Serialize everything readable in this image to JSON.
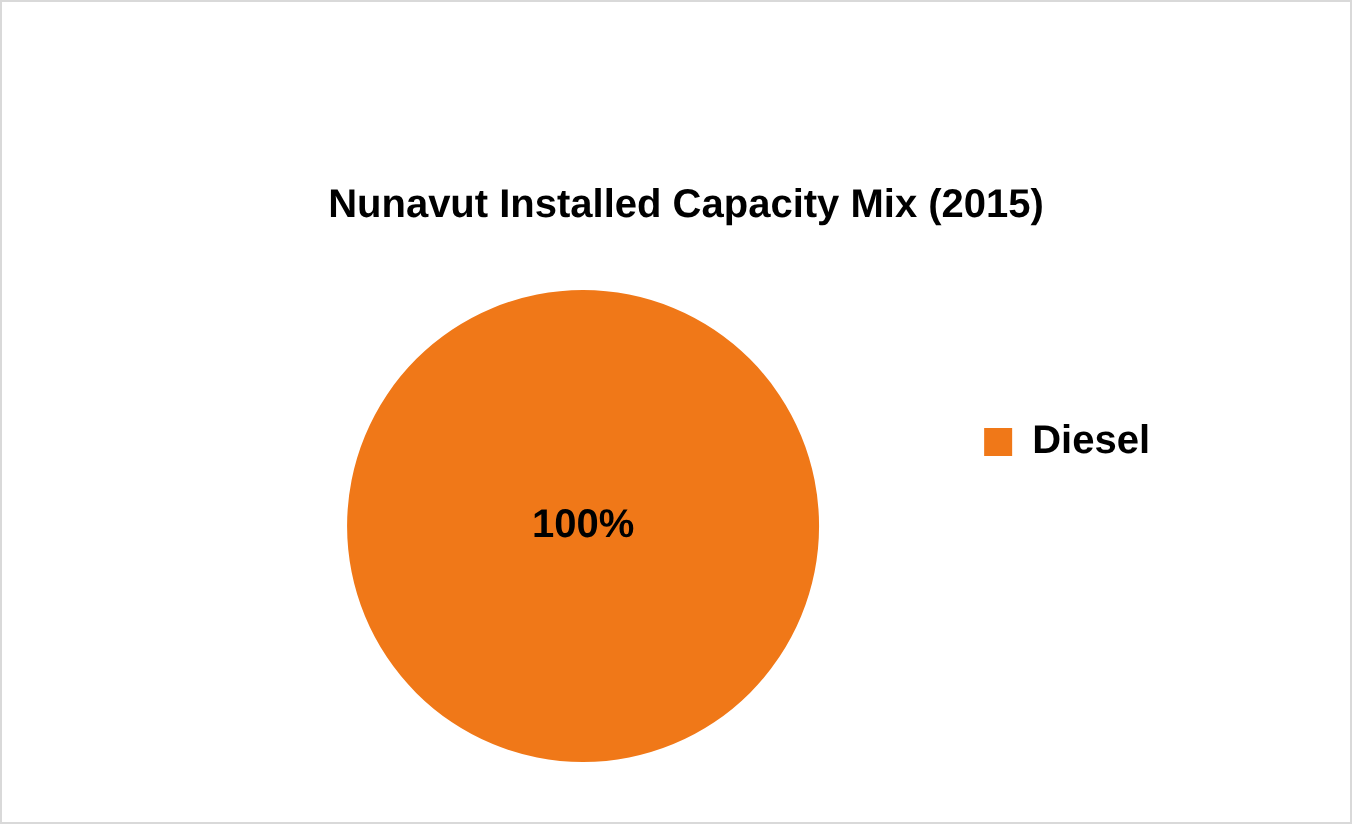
{
  "chart_data": {
    "type": "pie",
    "title": "Nunavut Installed Capacity Mix (2015)",
    "categories": [
      "Diesel"
    ],
    "values": [
      100
    ],
    "colors": [
      "#f07818"
    ],
    "value_labels": [
      "100%"
    ],
    "legend": "right"
  }
}
